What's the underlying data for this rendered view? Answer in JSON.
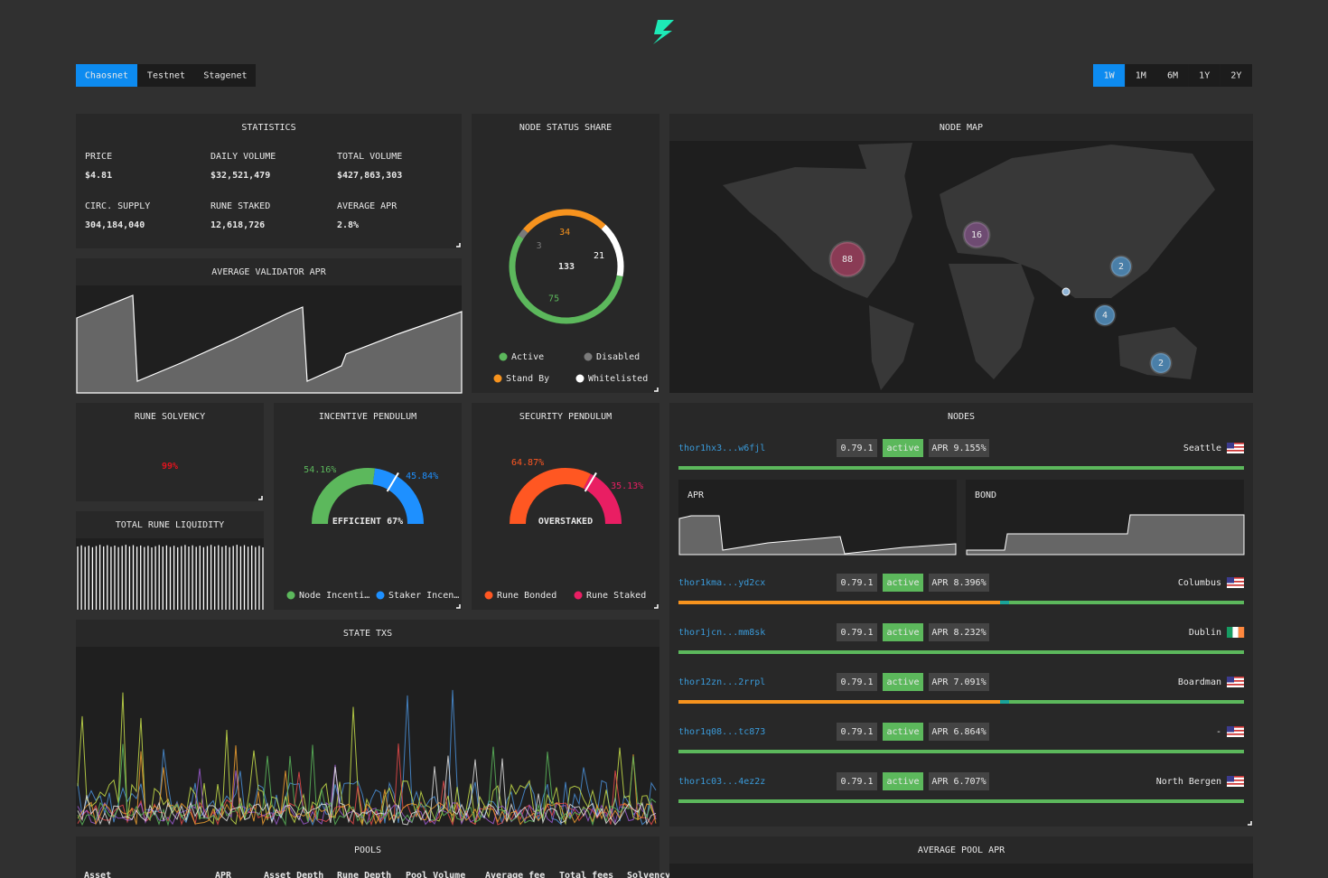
{
  "network_tabs": [
    "Chaosnet",
    "Testnet",
    "Stagenet"
  ],
  "range_tabs": [
    "1W",
    "1M",
    "6M",
    "1Y",
    "2Y"
  ],
  "statistics": {
    "title": "STATISTICS",
    "items": [
      {
        "label": "PRICE",
        "value": "$4.81"
      },
      {
        "label": "DAILY VOLUME",
        "value": "$32,521,479"
      },
      {
        "label": "TOTAL VOLUME",
        "value": "$427,863,303"
      },
      {
        "label": "CIRC. SUPPLY",
        "value": "304,184,040"
      },
      {
        "label": "RUNE STAKED",
        "value": "12,618,726"
      },
      {
        "label": "AVERAGE APR",
        "value": "2.8%"
      }
    ]
  },
  "validator_apr": {
    "title": "AVERAGE VALIDATOR APR"
  },
  "node_status": {
    "title": "NODE STATUS SHARE",
    "total": 133,
    "segments": [
      {
        "name": "Active",
        "value": 75,
        "color": "#5cb85c"
      },
      {
        "name": "Disabled",
        "value": 3,
        "color": "#7a7a7a"
      },
      {
        "name": "Stand By",
        "value": 34,
        "color": "#f7931e"
      },
      {
        "name": "Whitelisted",
        "value": 21,
        "color": "#ffffff"
      }
    ]
  },
  "node_map": {
    "title": "NODE MAP",
    "clusters": [
      88,
      16,
      2,
      4,
      2
    ]
  },
  "rune_solvency": {
    "title": "RUNE SOLVENCY",
    "value": "99%"
  },
  "total_rune_liquidity": {
    "title": "TOTAL RUNE LIQUIDITY"
  },
  "incentive_pendulum": {
    "title": "INCENTIVE PENDULUM",
    "segments": [
      {
        "name": "Node Incenti…",
        "value": 54.16,
        "value_label": "54.16%",
        "color": "#5cb85c"
      },
      {
        "name": "Staker Incen…",
        "value": 45.84,
        "value_label": "45.84%",
        "color": "#1e90ff"
      }
    ],
    "needle_label": "EFFICIENT 67%"
  },
  "security_pendulum": {
    "title": "SECURITY PENDULUM",
    "segments": [
      {
        "name": "Rune Bonded",
        "value": 64.87,
        "value_label": "64.87%",
        "color": "#ff5722"
      },
      {
        "name": "Rune Staked",
        "value": 35.13,
        "value_label": "35.13%",
        "color": "#e91e63"
      }
    ],
    "needle_label": "OVERSTAKED"
  },
  "state_txs": {
    "title": "STATE TXS"
  },
  "nodes": {
    "title": "NODES",
    "apr_label": "APR",
    "bond_label": "BOND",
    "rows": [
      {
        "address": "thor1hx3...w6fjl",
        "version": "0.79.1",
        "status": "active",
        "apr": "APR 9.155%",
        "location": "Seattle"
      },
      {
        "address": "thor1kma...yd2cx",
        "version": "0.79.1",
        "status": "active",
        "apr": "APR 8.396%",
        "location": "Columbus"
      },
      {
        "address": "thor1jcn...mm8sk",
        "version": "0.79.1",
        "status": "active",
        "apr": "APR 8.232%",
        "location": "Dublin"
      },
      {
        "address": "thor12zn...2rrpl",
        "version": "0.79.1",
        "status": "active",
        "apr": "APR 7.091%",
        "location": "Boardman"
      },
      {
        "address": "thor1q08...tc873",
        "version": "0.79.1",
        "status": "active",
        "apr": "APR 6.864%",
        "location": "-"
      },
      {
        "address": "thor1c03...4ez2z",
        "version": "0.79.1",
        "status": "active",
        "apr": "APR 6.707%",
        "location": "North Bergen"
      }
    ]
  },
  "pools": {
    "title": "POOLS",
    "columns": [
      "Asset",
      "APR",
      "Asset Depth",
      "Rune Depth",
      "Pool Volume",
      "Average fee",
      "Total fees",
      "Solvency"
    ]
  },
  "average_pool_apr": {
    "title": "AVERAGE POOL APR"
  }
}
